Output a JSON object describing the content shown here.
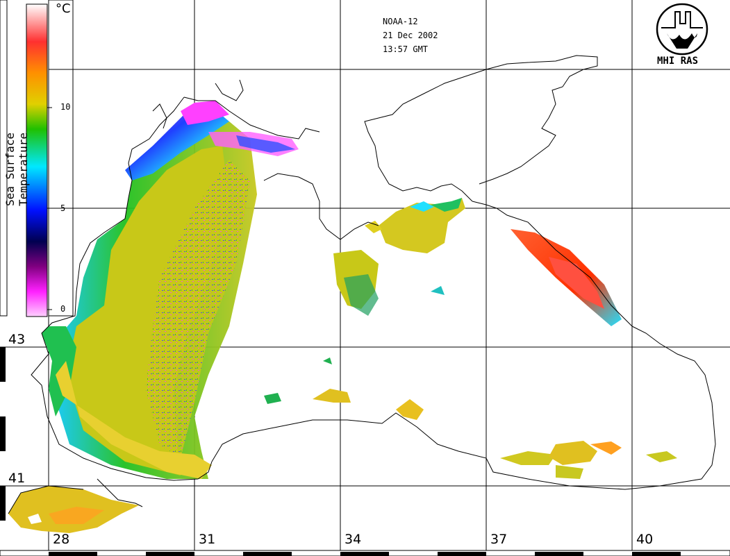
{
  "header": {
    "satellite": "NOAA-12",
    "date": "21 Dec 2002",
    "time": "13:57 GMT"
  },
  "logo": {
    "text": "MHI RAS",
    "icon": "mhi-ras-emblem-icon"
  },
  "colorbar": {
    "title": "Sea Surface Temperature",
    "unit": "°C",
    "ticks": [
      "10",
      "5",
      "0"
    ],
    "stops": [
      "#ffffff",
      "#ff2a00",
      "#ffc000",
      "#d4d400",
      "#20c000",
      "#00e0ff",
      "#0000ff",
      "#000040",
      "#800080",
      "#ff00ff",
      "#ffffff"
    ]
  },
  "grid": {
    "latitudes": [
      "43",
      "41"
    ],
    "longitudes": [
      "28",
      "31",
      "34",
      "37",
      "40"
    ]
  },
  "colors": {
    "warm_water": "#cfcf10",
    "cold_water": "#ff40ff",
    "hot_water": "#ff4020",
    "coastline": "#000000"
  }
}
